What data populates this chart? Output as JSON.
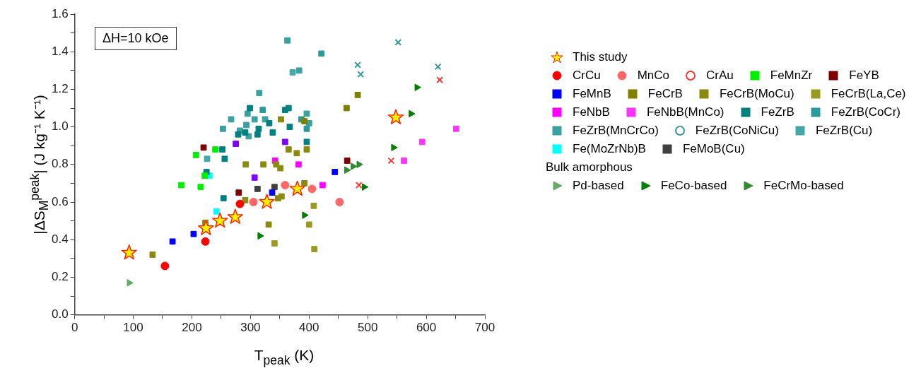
{
  "chart_data": {
    "type": "scatter",
    "xlabel": "T$_{peak}$ (K)",
    "ylabel": "|ΔS$_{M}$$^{peak}$| (J kg⁻¹ K⁻¹)",
    "annotations": [
      "ΔH=10 kOe",
      "Bulk amorphous"
    ],
    "xlim": [
      0,
      700
    ],
    "ylim": [
      0,
      1.6
    ],
    "xticks": [
      0,
      {
        "value": 50,
        "label": null
      },
      100,
      {
        "value": 150,
        "label": null
      },
      200,
      {
        "value": 250,
        "label": null
      },
      300,
      {
        "value": 350,
        "label": null
      },
      400,
      {
        "value": 450,
        "label": null
      },
      500,
      {
        "value": 550,
        "label": null
      },
      600,
      {
        "value": 650,
        "label": null
      },
      700
    ],
    "yticks": [
      {
        "value": 0,
        "label": "0.0"
      },
      {
        "value": 0.1,
        "label": null
      },
      0.2,
      {
        "value": 0.3,
        "label": null
      },
      0.4,
      {
        "value": 0.5,
        "label": null
      },
      0.6,
      {
        "value": 0.7,
        "label": null
      },
      0.8,
      {
        "value": 0.9,
        "label": null
      },
      {
        "value": 1,
        "label": "1.0"
      },
      {
        "value": 1.1,
        "label": null
      },
      1.2,
      {
        "value": 1.3,
        "label": null
      },
      1.4,
      {
        "value": 1.5,
        "label": null
      },
      1.6
    ],
    "grid": false,
    "legend": "right",
    "series": [
      {
        "name": "This study",
        "color": "#ffee00",
        "marker": "star",
        "x": [
          93,
          224,
          248,
          274,
          328,
          380,
          548
        ],
        "values": [
          0.33,
          0.46,
          0.5,
          0.52,
          0.6,
          0.67,
          1.05
        ]
      },
      {
        "name": "CrCu",
        "color": "#ff0000",
        "marker": "circle",
        "x": [
          154,
          223,
          282
        ],
        "values": [
          0.26,
          0.39,
          0.59
        ]
      },
      {
        "name": "MnCo",
        "color": "#ff6666",
        "marker": "circle",
        "x": [
          305,
          359,
          405,
          452
        ],
        "values": [
          0.6,
          0.69,
          0.67,
          0.6
        ]
      },
      {
        "name": "CrAu",
        "color": "#ff3333",
        "marker": "cross",
        "x": [
          540,
          485,
          623
        ],
        "values": [
          0.82,
          0.69,
          1.25
        ]
      },
      {
        "name": "FeMnZr",
        "color": "#00ee00",
        "marker": "square",
        "x": [
          182,
          215,
          207,
          240,
          222
        ],
        "values": [
          0.69,
          0.68,
          0.85,
          0.88,
          0.74
        ]
      },
      {
        "name": "FeYB",
        "color": "#800000",
        "marker": "square",
        "x": [
          220,
          280,
          465
        ],
        "values": [
          0.89,
          0.65,
          0.82
        ]
      },
      {
        "name": "FeMnB",
        "color": "#0000ff",
        "marker": "square",
        "x": [
          167,
          203,
          337,
          444
        ],
        "values": [
          0.39,
          0.43,
          0.65,
          0.76
        ]
      },
      {
        "name": "FeCrB",
        "color": "#808000",
        "marker": "square",
        "x": [
          392,
          464,
          483
        ],
        "values": [
          1.03,
          1.1,
          1.17
        ]
      },
      {
        "name": "FeCrB(MoCu)",
        "color": "#8a8a10",
        "marker": "square",
        "x": [
          133,
          223,
          291,
          292,
          322,
          344,
          351,
          352,
          365,
          379,
          347,
          353,
          392,
          331,
          396
        ],
        "values": [
          0.32,
          0.49,
          0.61,
          0.8,
          0.8,
          0.8,
          0.78,
          1.04,
          0.88,
          0.86,
          0.62,
          0.63,
          0.7,
          0.48,
          0.88
        ]
      },
      {
        "name": "FeCrB(La,Ce)",
        "color": "#9a9a20",
        "marker": "square",
        "x": [
          341,
          400,
          409,
          408
        ],
        "values": [
          0.38,
          0.48,
          0.35,
          0.58
        ]
      },
      {
        "color": "#8000ff",
        "marker": "square",
        "x": [
          275,
          359,
          307
        ],
        "values": [
          0.91,
          0.92,
          0.73
        ]
      },
      {
        "name": "FeNbB",
        "color": "#ff00ff",
        "marker": "square",
        "x": [
          342,
          382,
          423
        ],
        "values": [
          0.82,
          0.8,
          0.69
        ]
      },
      {
        "name": "FeNbB(MnCo)",
        "color": "#ff33ff",
        "marker": "square",
        "x": [
          562,
          593,
          651
        ],
        "values": [
          0.82,
          0.92,
          0.99
        ]
      },
      {
        "name": "FeZrB",
        "color": "#008080",
        "marker": "square",
        "x": [
          225,
          252,
          256,
          254,
          299,
          359,
          365,
          332,
          338,
          367,
          279,
          291,
          312,
          314,
          396
        ],
        "values": [
          0.76,
          0.88,
          0.83,
          0.62,
          1.1,
          1.09,
          1.1,
          1.02,
          0.97,
          1.0,
          0.96,
          0.97,
          0.96,
          0.99,
          0.92
        ]
      },
      {
        "name": "FeZrB(CoCr)",
        "color": "#2a9a9a",
        "marker": "square",
        "x": [
          321,
          421,
          387,
          396
        ],
        "values": [
          1.09,
          1.39,
          1.04,
          0.99
        ]
      },
      {
        "name": "FeZrB(MnCrCo)",
        "color": "#3aa0a0",
        "marker": "square",
        "x": [
          363,
          383,
          315,
          267,
          295,
          307,
          325,
          253,
          293,
          282,
          297,
          396,
          400
        ],
        "values": [
          1.46,
          1.3,
          1.18,
          1.04,
          1.07,
          1.04,
          1.04,
          0.99,
          1.01,
          0.98,
          0.95,
          1.07,
          1.02
        ]
      },
      {
        "name": "FeZrB(CoNiCu)",
        "color": "#339999",
        "marker": "cross",
        "x": [
          552,
          483,
          488,
          620
        ],
        "values": [
          1.45,
          1.33,
          1.28,
          1.32
        ]
      },
      {
        "name": "FeZrB(Cu)",
        "color": "#44a8a8",
        "marker": "square",
        "x": [
          226,
          372
        ],
        "values": [
          0.83,
          1.29
        ]
      },
      {
        "name": "Fe(MoZrNb)B",
        "color": "#00ffff",
        "marker": "square",
        "x": [
          230,
          242
        ],
        "values": [
          0.74,
          0.55
        ]
      },
      {
        "name": "FeMoB(Cu)",
        "color": "#404040",
        "marker": "square",
        "x": [
          312,
          341
        ],
        "values": [
          0.67,
          0.68
        ]
      },
      {
        "name": "Pd-based",
        "color": "#66aa66",
        "marker": "triangle",
        "x": [
          93
        ],
        "values": [
          0.17
        ]
      },
      {
        "name": "FeCo-based",
        "color": "#008000",
        "marker": "triangle",
        "x": [
          316,
          392,
          494,
          544,
          574,
          584
        ],
        "values": [
          0.42,
          0.53,
          0.68,
          0.89,
          1.07,
          1.21
        ]
      },
      {
        "name": "FeCrMo-based",
        "color": "#2e8b2e",
        "marker": "triangle",
        "x": [
          464,
          475,
          485
        ],
        "values": [
          0.77,
          0.79,
          0.8
        ]
      }
    ]
  }
}
